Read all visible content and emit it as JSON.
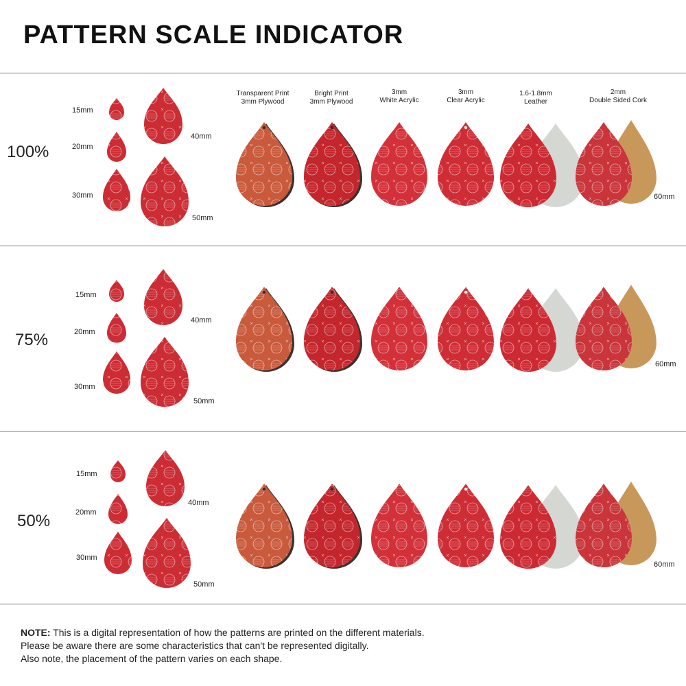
{
  "title": "PATTERN SCALE INDICATOR",
  "materials": [
    {
      "line1": "Transparent Print",
      "line2": "3mm Plywood",
      "color": "#c95a3c"
    },
    {
      "line1": "Bright Print",
      "line2": "3mm Plywood",
      "color": "#c3262c"
    },
    {
      "line1": "3mm",
      "line2": "White Acrylic",
      "color": "#d3313a"
    },
    {
      "line1": "3mm",
      "line2": "Clear Acrylic",
      "color": "#cf2d36"
    },
    {
      "line1": "1.6-1.8mm",
      "line2": "Leather",
      "color": "#cc2a33",
      "back_color": "#d5d7d2"
    },
    {
      "line1": "2mm",
      "line2": "Double Sided Cork",
      "color": "#c9353a",
      "back_color": "#c8985a"
    }
  ],
  "sections": [
    {
      "scale": "100%",
      "sizes": [
        "15mm",
        "20mm",
        "30mm",
        "40mm",
        "50mm"
      ],
      "large_size": "60mm"
    },
    {
      "scale": "75%",
      "sizes": [
        "15mm",
        "20mm",
        "30mm",
        "40mm",
        "50mm"
      ],
      "large_size": "60mm"
    },
    {
      "scale": "50%",
      "sizes": [
        "15mm",
        "20mm",
        "30mm",
        "40mm",
        "50mm"
      ],
      "large_size": "60mm"
    }
  ],
  "note": {
    "label": "NOTE:",
    "line1": "This is a digital representation of how the patterns are printed on the different materials.",
    "line2": "Please be aware there are some characteristics that can't be represented digitally.",
    "line3": "Also note, the placement of the pattern varies on each shape."
  }
}
